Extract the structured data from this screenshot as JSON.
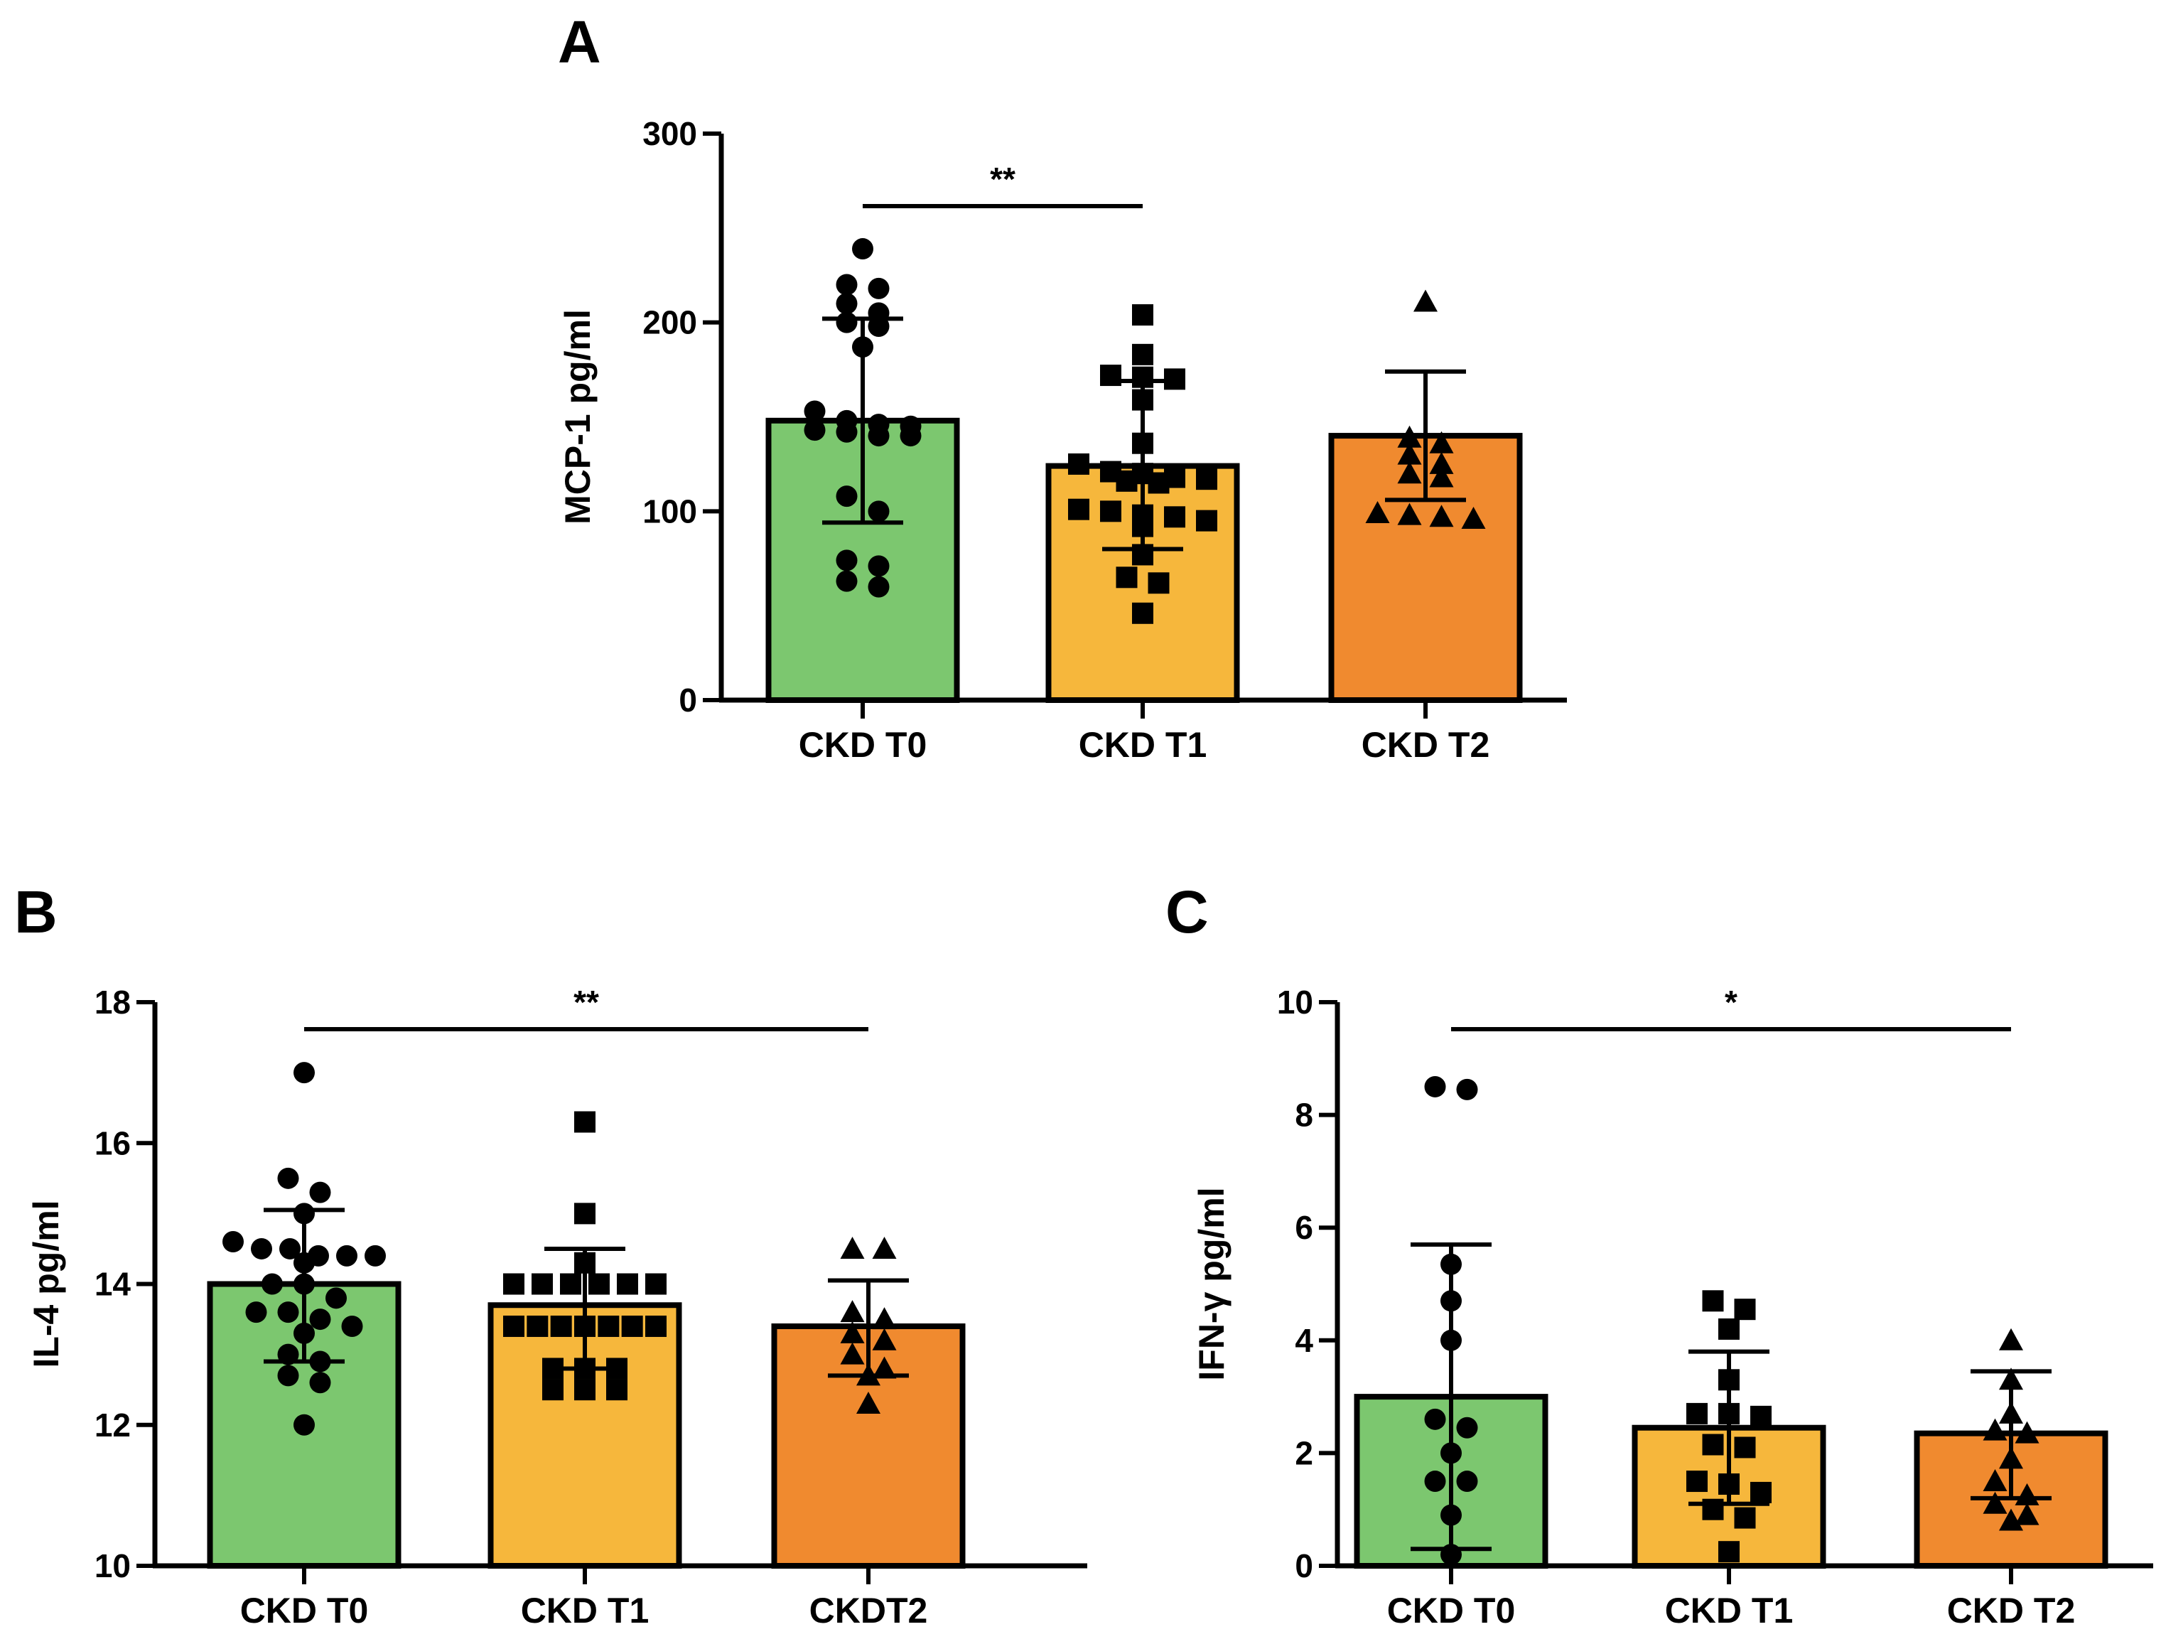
{
  "chart_data": [
    {
      "panel": "A",
      "type": "bar",
      "ylabel": "MCP-1 pg/ml",
      "ylim": [
        0,
        300
      ],
      "yticks": [
        "0",
        "100",
        "200",
        "300"
      ],
      "categories": [
        "CKD T0",
        "CKD T1",
        "CKD T2"
      ],
      "markers": [
        "circle",
        "square",
        "triangle"
      ],
      "colors": [
        "#7cc76f",
        "#f6b73c",
        "#f08a2f"
      ],
      "values": [
        148,
        124,
        140
      ],
      "error_upper": [
        202,
        169,
        174
      ],
      "error_lower": [
        94,
        80,
        106
      ],
      "points": [
        [
          239,
          220,
          218,
          210,
          205,
          200,
          198,
          187,
          153,
          148,
          146,
          145,
          143,
          142,
          140,
          140,
          108,
          100,
          74,
          71,
          63,
          60
        ],
        [
          204,
          183,
          172,
          171,
          170,
          159,
          136,
          125,
          121,
          120,
          118,
          117,
          116,
          115,
          101,
          100,
          98,
          97,
          95,
          92,
          77,
          65,
          62,
          46
        ],
        [
          211,
          139,
          136,
          130,
          125,
          120,
          118,
          99,
          98,
          97,
          96
        ]
      ],
      "significance": {
        "from": "CKD T0",
        "to": "CKD T1",
        "label": "**"
      }
    },
    {
      "panel": "B",
      "type": "bar",
      "ylabel": "IL-4 pg/ml",
      "ylim": [
        10,
        18
      ],
      "yticks": [
        "10",
        "12",
        "14",
        "16",
        "18"
      ],
      "categories": [
        "CKD T0",
        "CKD T1",
        "CKDT2"
      ],
      "markers": [
        "circle",
        "square",
        "triangle"
      ],
      "colors": [
        "#7cc76f",
        "#f6b73c",
        "#f08a2f"
      ],
      "values": [
        14.0,
        13.7,
        13.4
      ],
      "error_upper": [
        15.05,
        14.5,
        14.05
      ],
      "error_lower": [
        12.9,
        12.8,
        12.7
      ],
      "points": [
        [
          17.0,
          15.5,
          15.3,
          15.0,
          14.6,
          14.5,
          14.5,
          14.4,
          14.4,
          14.4,
          14.3,
          14.0,
          14.0,
          13.8,
          13.6,
          13.6,
          13.5,
          13.4,
          13.3,
          13.0,
          12.9,
          12.7,
          12.6,
          12.0
        ],
        [
          16.3,
          15.0,
          14.3,
          14.0,
          14.0,
          14.0,
          14.0,
          14.0,
          14.0,
          13.4,
          13.4,
          13.4,
          13.4,
          13.4,
          13.4,
          13.4,
          12.8,
          12.8,
          12.8,
          12.5,
          12.5,
          12.5
        ],
        [
          14.5,
          14.5,
          13.6,
          13.5,
          13.3,
          13.2,
          13.0,
          12.8,
          12.7,
          12.3
        ]
      ],
      "significance": {
        "from": "CKD T0",
        "to": "CKDT2",
        "label": "**"
      }
    },
    {
      "panel": "C",
      "type": "bar",
      "ylabel": "IFN-γ pg/ml",
      "ylim": [
        0,
        10
      ],
      "yticks": [
        "0",
        "2",
        "4",
        "6",
        "8",
        "10"
      ],
      "categories": [
        "CKD T0",
        "CKD T1",
        "CKD T2"
      ],
      "markers": [
        "circle",
        "square",
        "triangle"
      ],
      "colors": [
        "#7cc76f",
        "#f6b73c",
        "#f08a2f"
      ],
      "values": [
        3.0,
        2.45,
        2.35
      ],
      "error_upper": [
        5.7,
        3.8,
        3.45
      ],
      "error_lower": [
        0.3,
        1.1,
        1.2
      ],
      "points": [
        [
          8.5,
          8.45,
          5.35,
          4.7,
          4.0,
          2.6,
          2.45,
          2.0,
          1.5,
          1.5,
          0.9,
          0.2
        ],
        [
          4.7,
          4.55,
          4.2,
          3.3,
          2.7,
          2.7,
          2.65,
          2.15,
          2.1,
          1.5,
          1.45,
          1.3,
          1.0,
          0.85,
          0.25
        ],
        [
          4.0,
          3.3,
          2.7,
          2.4,
          2.35,
          1.9,
          1.5,
          1.25,
          1.1,
          0.9,
          0.8
        ]
      ],
      "significance": {
        "from": "CKD T0",
        "to": "CKD T2",
        "label": "*"
      }
    }
  ]
}
